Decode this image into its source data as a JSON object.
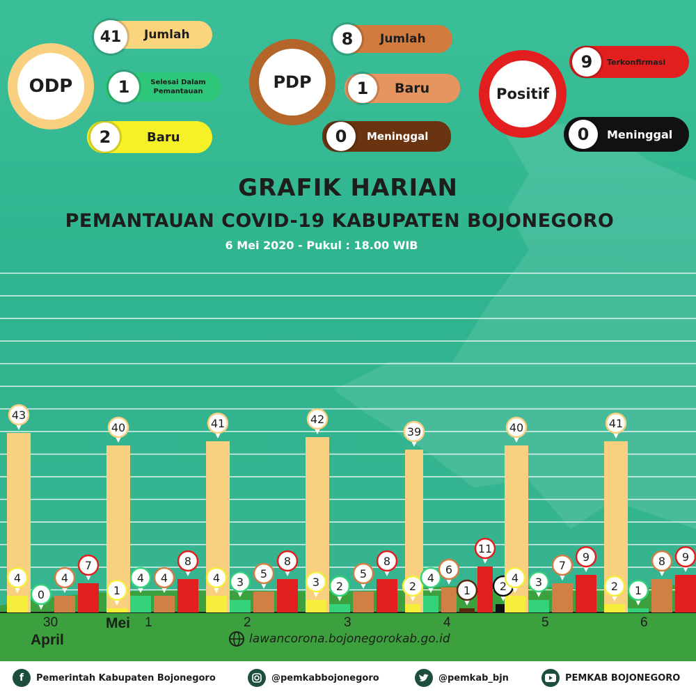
{
  "summary": {
    "odp": {
      "label": "ODP",
      "total_value": "41",
      "total_label": "Jumlah",
      "selesai_value": "1",
      "selesai_label": "Selesai Dalam Pemantauan",
      "baru_value": "2",
      "baru_label": "Baru"
    },
    "pdp": {
      "label": "PDP",
      "total_value": "8",
      "total_label": "Jumlah",
      "baru_value": "1",
      "baru_label": "Baru",
      "meninggal_value": "0",
      "meninggal_label": "Meninggal"
    },
    "positif": {
      "label": "Positif",
      "konfirmasi_value": "9",
      "konfirmasi_label": "Terkonfirmasi",
      "meninggal_value": "0",
      "meninggal_label": "Meninggal"
    }
  },
  "header": {
    "title": "GRAFIK HARIAN",
    "subtitle": "PEMANTAUAN COVID-19 KABUPATEN BOJONEGORO",
    "date": "6 Mei 2020 - Pukul : 18.00 WIB"
  },
  "chart_data": {
    "type": "bar",
    "categories": [
      "30 April",
      "1 Mei",
      "2",
      "3",
      "4",
      "5",
      "6"
    ],
    "category_labels": [
      {
        "top": "30",
        "bottom": "April"
      },
      {
        "prefix": "Mei",
        "top": "1"
      },
      {
        "top": "2"
      },
      {
        "top": "3"
      },
      {
        "top": "4"
      },
      {
        "top": "5"
      },
      {
        "top": "6"
      }
    ],
    "series_colors": [
      "#f9cf80",
      "#f5ee3a",
      "#35d27c",
      "#d07f45",
      "#e21e1e",
      "#5a2a0e",
      "#111111"
    ],
    "groups": [
      [
        {
          "s": 0,
          "v": 43
        },
        {
          "s": 1,
          "v": 4
        },
        {
          "s": 2,
          "v": 0
        },
        {
          "s": 3,
          "v": 4
        },
        {
          "s": 4,
          "v": 7
        }
      ],
      [
        {
          "s": 0,
          "v": 40
        },
        {
          "s": 1,
          "v": 1
        },
        {
          "s": 2,
          "v": 4
        },
        {
          "s": 3,
          "v": 4
        },
        {
          "s": 4,
          "v": 8
        }
      ],
      [
        {
          "s": 0,
          "v": 41
        },
        {
          "s": 1,
          "v": 4
        },
        {
          "s": 2,
          "v": 3
        },
        {
          "s": 3,
          "v": 5
        },
        {
          "s": 4,
          "v": 8
        }
      ],
      [
        {
          "s": 0,
          "v": 42
        },
        {
          "s": 1,
          "v": 3
        },
        {
          "s": 2,
          "v": 2
        },
        {
          "s": 3,
          "v": 5
        },
        {
          "s": 4,
          "v": 8
        }
      ],
      [
        {
          "s": 0,
          "v": 39
        },
        {
          "s": 1,
          "v": 2
        },
        {
          "s": 2,
          "v": 4
        },
        {
          "s": 3,
          "v": 6
        },
        {
          "s": 5,
          "v": 1
        },
        {
          "s": 4,
          "v": 11
        },
        {
          "s": 6,
          "v": 2
        }
      ],
      [
        {
          "s": 0,
          "v": 40
        },
        {
          "s": 1,
          "v": 4
        },
        {
          "s": 2,
          "v": 3
        },
        {
          "s": 3,
          "v": 7
        },
        {
          "s": 4,
          "v": 9
        }
      ],
      [
        {
          "s": 0,
          "v": 41
        },
        {
          "s": 1,
          "v": 2
        },
        {
          "s": 2,
          "v": 1
        },
        {
          "s": 3,
          "v": 8
        },
        {
          "s": 4,
          "v": 9
        }
      ]
    ],
    "ylim": [
      0,
      56
    ],
    "grid": true
  },
  "website": "lawancorona.bojonegorokab.go.id",
  "footer": {
    "facebook": "Pemerintah Kabupaten Bojonegoro",
    "instagram": "@pemkabbojonegoro",
    "twitter": "@pemkab_bjn",
    "youtube": "PEMKAB BOJONEGORO"
  }
}
